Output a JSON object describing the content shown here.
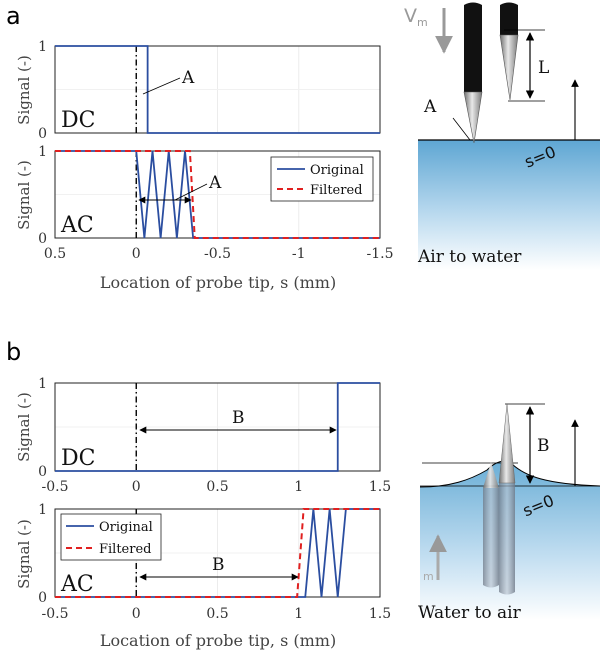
{
  "panels": {
    "a": {
      "label": "a"
    },
    "b": {
      "label": "b"
    }
  },
  "axis_text": {
    "ylabel": "Signal (-)",
    "xlabel": "Location of probe tip, s (mm)"
  },
  "legend": {
    "original": "Original",
    "filtered": "Filtered"
  },
  "colors": {
    "original": "#2b4ea0",
    "filtered": "#e02020",
    "water_top": "#6aaed6"
  },
  "illustration": {
    "a": {
      "velocity": "V",
      "velocity_sub": "m",
      "length": "L",
      "marker": "A",
      "surface": "s=0",
      "caption": "Air to water"
    },
    "b": {
      "velocity_sub": "m",
      "marker": "B",
      "surface": "s=0",
      "caption": "Water to air"
    }
  },
  "chart_data": [
    {
      "id": "a-dc",
      "type": "line",
      "label": "DC",
      "xlim": [
        0.5,
        -1.5
      ],
      "ylim": [
        0,
        1
      ],
      "xticks": [],
      "yticks": [
        "0",
        "1"
      ],
      "annotation": "A",
      "series": [
        {
          "x": [
            0.5,
            -0.07,
            -0.07,
            -1.5
          ],
          "y": [
            1,
            1,
            0,
            0
          ]
        }
      ]
    },
    {
      "id": "a-ac",
      "type": "line",
      "label": "AC",
      "xlim": [
        0.5,
        -1.5
      ],
      "ylim": [
        0,
        1
      ],
      "xticks": [
        "0.5",
        "0",
        "-0.5",
        "-1",
        "-1.5"
      ],
      "yticks": [
        "0",
        "1"
      ],
      "annotation": "A",
      "series": [
        {
          "name": "Original",
          "x": [
            0.5,
            0.0,
            -0.05,
            -0.1,
            -0.15,
            -0.2,
            -0.25,
            -0.3,
            -0.35,
            -0.35,
            -1.5
          ],
          "y": [
            1,
            1,
            0,
            1,
            0,
            1,
            0,
            1,
            0,
            0,
            0
          ]
        },
        {
          "name": "Filtered",
          "x": [
            0.5,
            -0.33,
            -0.36,
            -1.5
          ],
          "y": [
            1,
            1,
            0,
            0
          ]
        }
      ]
    },
    {
      "id": "b-dc",
      "type": "line",
      "label": "DC",
      "xlim": [
        -0.5,
        1.5
      ],
      "ylim": [
        0,
        1
      ],
      "xticks": [
        "-0.5",
        "0",
        "0.5",
        "1",
        "1.5"
      ],
      "yticks": [
        "0",
        "1"
      ],
      "annotation": "B",
      "series": [
        {
          "x": [
            -0.5,
            1.24,
            1.24,
            1.5
          ],
          "y": [
            0,
            0,
            1,
            1
          ]
        }
      ]
    },
    {
      "id": "b-ac",
      "type": "line",
      "label": "AC",
      "xlim": [
        -0.5,
        1.5
      ],
      "ylim": [
        0,
        1
      ],
      "xticks": [
        "-0.5",
        "0",
        "0.5",
        "1",
        "1.5"
      ],
      "yticks": [
        "0",
        "1"
      ],
      "annotation": "B",
      "series": [
        {
          "name": "Original",
          "x": [
            -0.5,
            1.04,
            1.09,
            1.14,
            1.19,
            1.24,
            1.29,
            1.5
          ],
          "y": [
            0,
            0,
            1,
            0,
            1,
            0,
            1,
            1
          ]
        },
        {
          "name": "Filtered",
          "x": [
            -0.5,
            0.99,
            1.03,
            1.5
          ],
          "y": [
            0,
            0,
            1,
            1
          ]
        }
      ]
    }
  ]
}
